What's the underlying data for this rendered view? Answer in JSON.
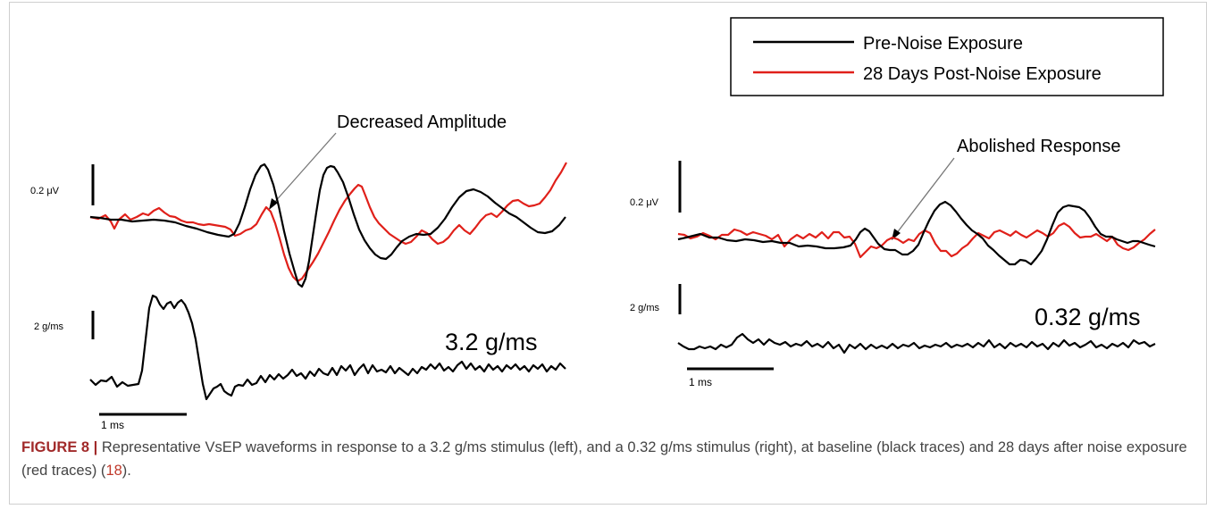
{
  "legend": {
    "items": [
      {
        "label": "Pre-Noise Exposure",
        "color": "#000000"
      },
      {
        "label": "28 Days Post-Noise Exposure",
        "color": "#e0201a"
      }
    ]
  },
  "panels": {
    "left": {
      "annotation": "Decreased Amplitude",
      "voltage_scale": "0.2 μV",
      "accel_scale": "2 g/ms",
      "time_scale": "1 ms",
      "stimulus_label": "3.2 g/ms"
    },
    "right": {
      "annotation": "Abolished Response",
      "voltage_scale": "0.2 μV",
      "accel_scale": "2 g/ms",
      "time_scale": "1 ms",
      "stimulus_label": "0.32 g/ms"
    }
  },
  "caption": {
    "label": "FIGURE 8 |",
    "text_before_ref": " Representative VsEP waveforms in response to a 3.2 g/ms stimulus (left), and a 0.32 g/ms stimulus (right), at baseline (black traces) and 28 days after noise exposure (red traces) (",
    "ref": "18",
    "text_after_ref": ")."
  },
  "colors": {
    "pre_trace": "#000000",
    "post_trace": "#e0201a",
    "arrow": "#777777",
    "caption_label": "#a12a2a",
    "caption_text": "#444444"
  }
}
